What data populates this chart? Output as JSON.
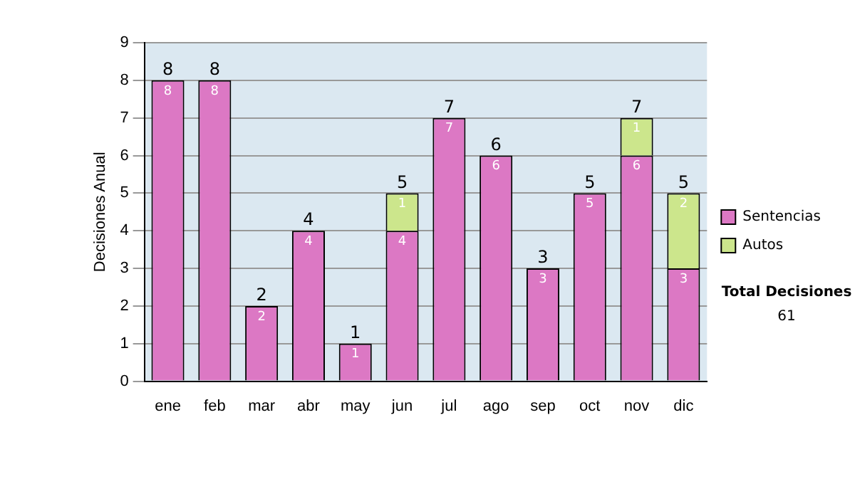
{
  "chart_data": {
    "type": "bar",
    "stacked": true,
    "ylabel": "Decisiones Anual",
    "categories": [
      "ene",
      "feb",
      "mar",
      "abr",
      "may",
      "jun",
      "jul",
      "ago",
      "sep",
      "oct",
      "nov",
      "dic"
    ],
    "series": [
      {
        "name": "Sentencias",
        "color": "#dc78c4",
        "values": [
          8,
          8,
          2,
          4,
          1,
          4,
          7,
          6,
          3,
          5,
          6,
          3
        ]
      },
      {
        "name": "Autos",
        "color": "#cce68c",
        "values": [
          null,
          null,
          null,
          null,
          null,
          1,
          null,
          null,
          null,
          null,
          1,
          2
        ]
      }
    ],
    "data_labels": true,
    "totals": [
      "8",
      "8",
      "2",
      "4",
      "1",
      "5",
      "7",
      "6",
      "3",
      "5",
      "7",
      "5"
    ],
    "ylim": [
      0,
      9
    ],
    "yticks": [
      0,
      1,
      2,
      3,
      4,
      5,
      6,
      7,
      8,
      9
    ],
    "grid": "y",
    "legend": "right",
    "annotations": [
      "Total Decisiones",
      "61"
    ]
  }
}
